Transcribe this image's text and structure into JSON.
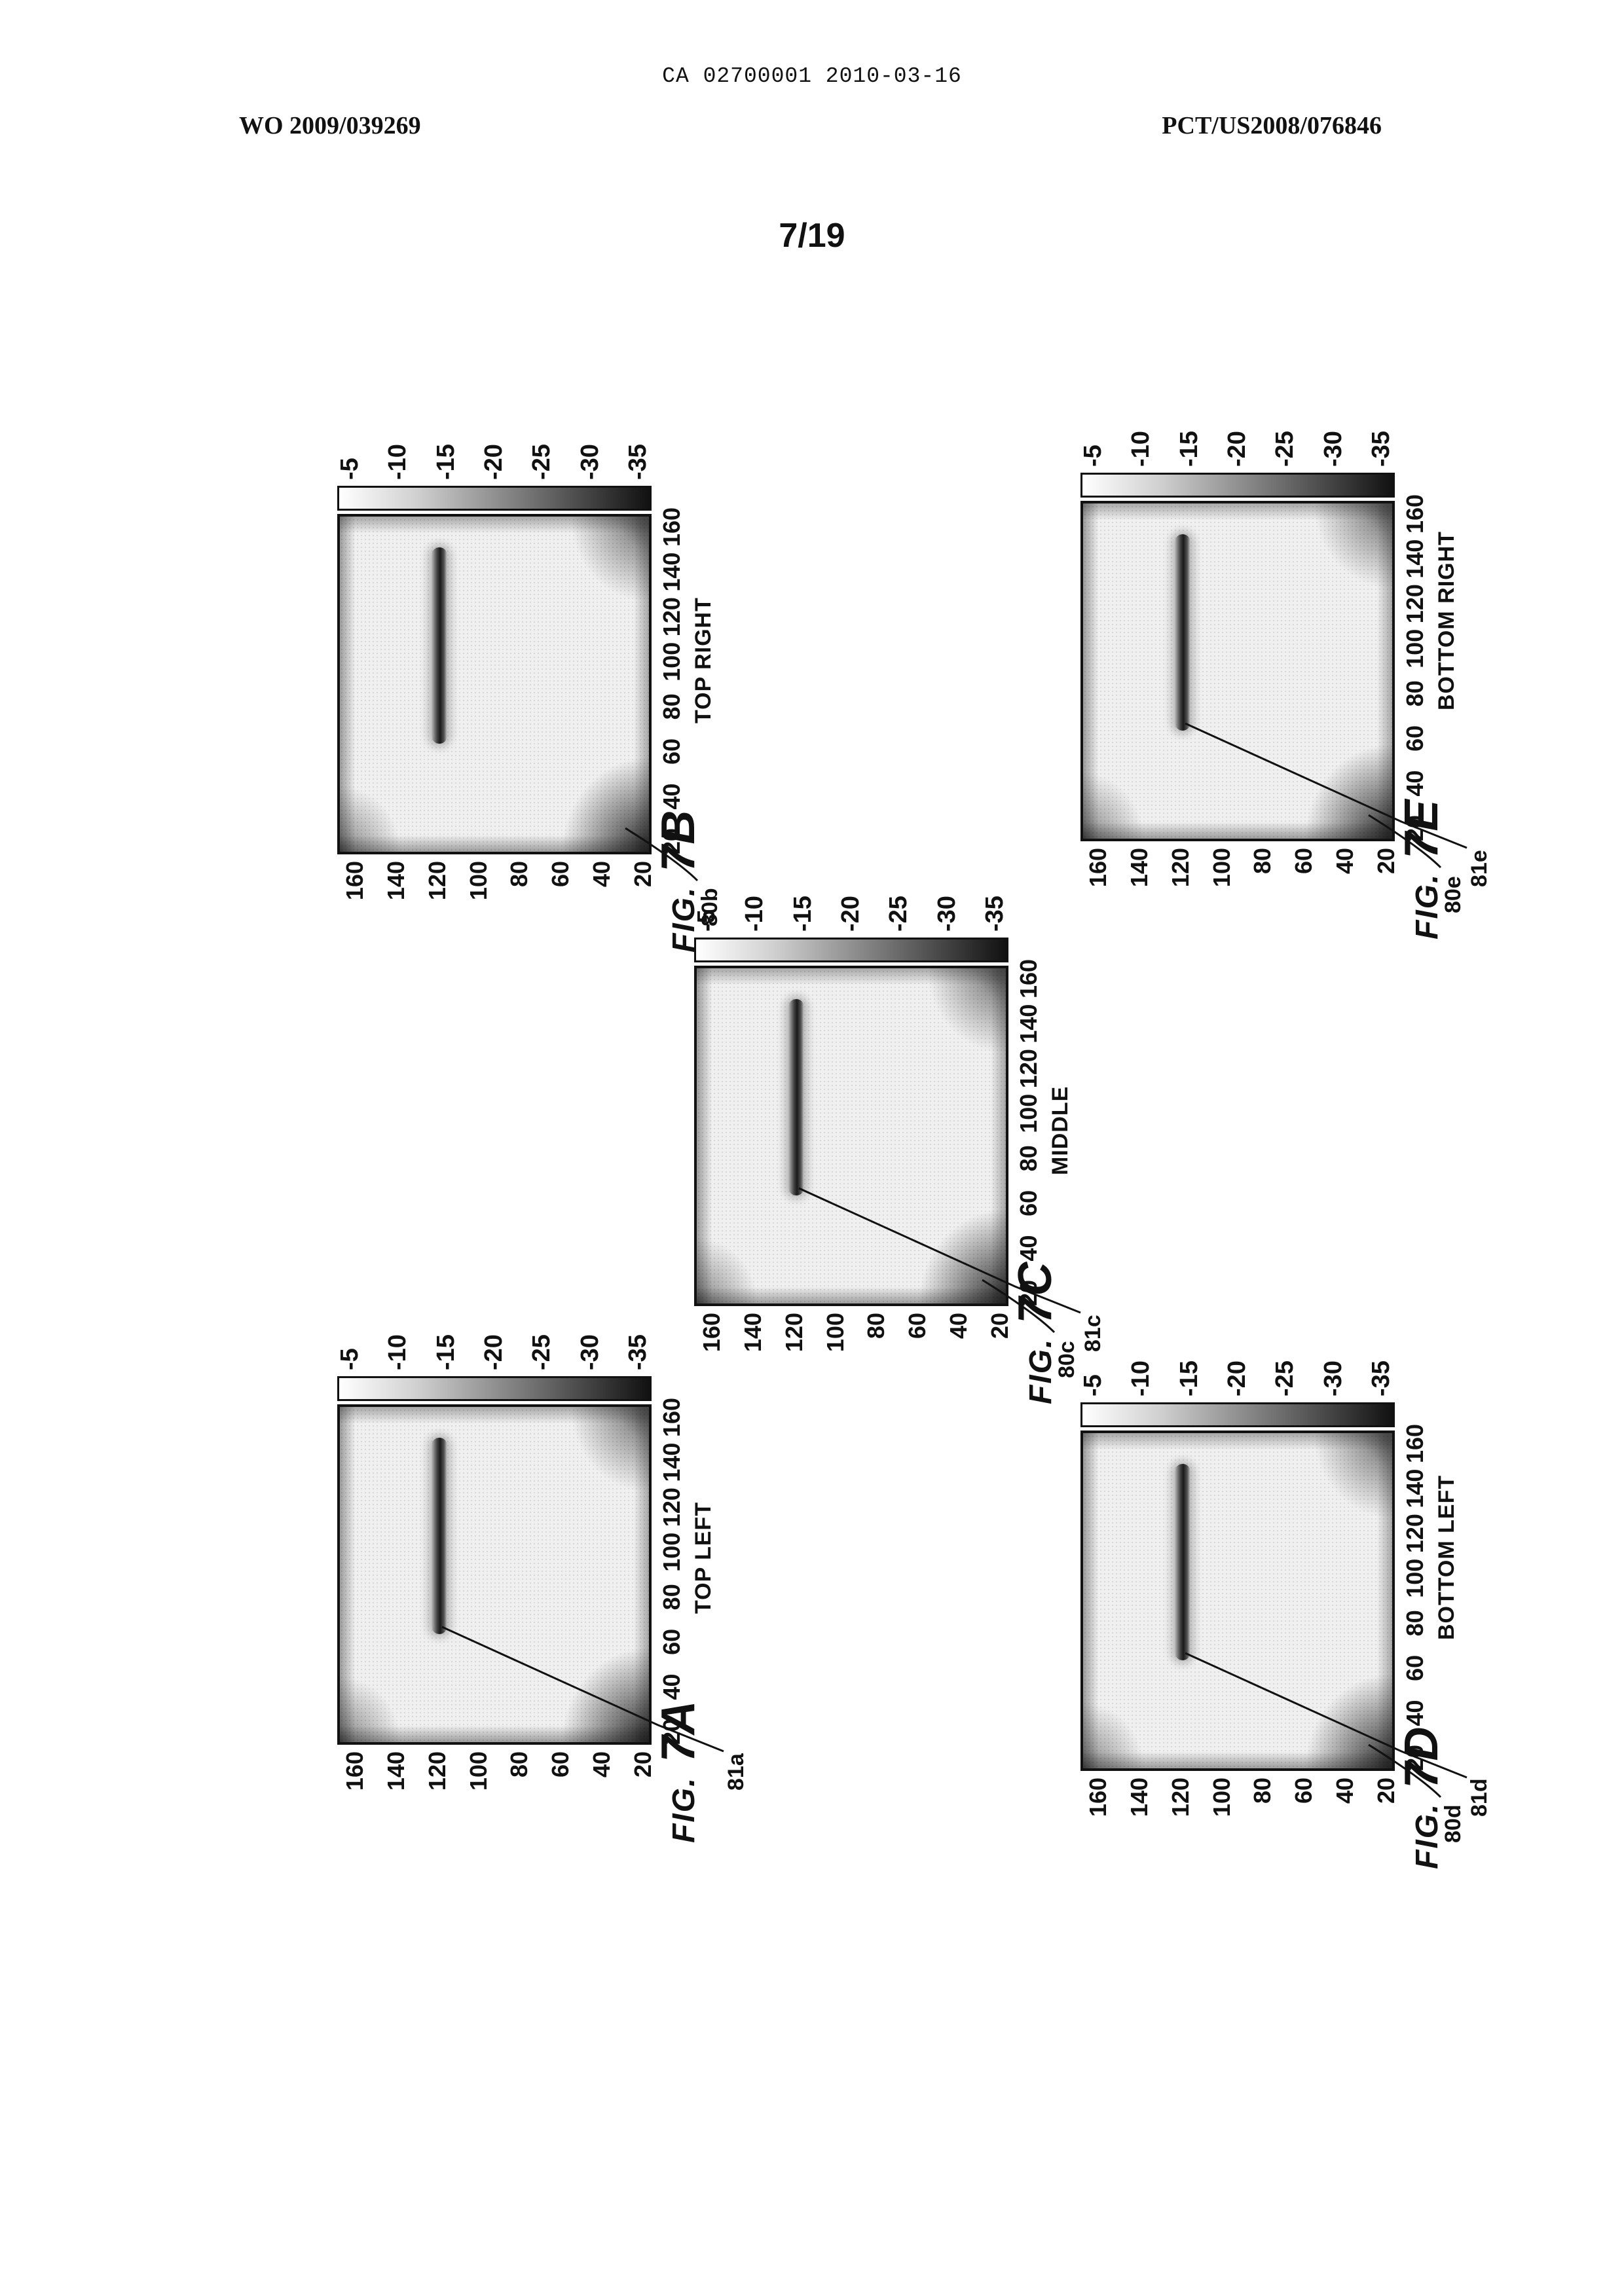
{
  "header": {
    "ca_number": "CA 02700001 2010-03-16",
    "wo_number": "WO 2009/039269",
    "pct_number": "PCT/US2008/076846"
  },
  "page_number": "7/19",
  "axes": {
    "y_ticks": [
      "160",
      "140",
      "120",
      "100",
      "80",
      "60",
      "40",
      "20"
    ],
    "x_ticks": [
      "20",
      "40",
      "60",
      "80",
      "100",
      "120",
      "140",
      "160"
    ],
    "colorbar_ticks": [
      "-5",
      "-10",
      "-15",
      "-20",
      "-25",
      "-30",
      "-35"
    ]
  },
  "figures": [
    {
      "id": "7A",
      "fig_prefix": "FIG.",
      "fig_num": "7A",
      "subtitle": "TOP LEFT",
      "ref_plot": "",
      "ref_streak": "81a"
    },
    {
      "id": "7B",
      "fig_prefix": "FIG.",
      "fig_num": "7B",
      "subtitle": "TOP RIGHT",
      "ref_plot": "80b",
      "ref_streak": ""
    },
    {
      "id": "7C",
      "fig_prefix": "FIG.",
      "fig_num": "7C",
      "subtitle": "MIDDLE",
      "ref_plot": "80c",
      "ref_streak": "81c"
    },
    {
      "id": "7D",
      "fig_prefix": "FIG.",
      "fig_num": "7D",
      "subtitle": "BOTTOM LEFT",
      "ref_plot": "80d",
      "ref_streak": "81d"
    },
    {
      "id": "7E",
      "fig_prefix": "FIG.",
      "fig_num": "7E",
      "subtitle": "BOTTOM RIGHT",
      "ref_plot": "80e",
      "ref_streak": "81e"
    }
  ]
}
